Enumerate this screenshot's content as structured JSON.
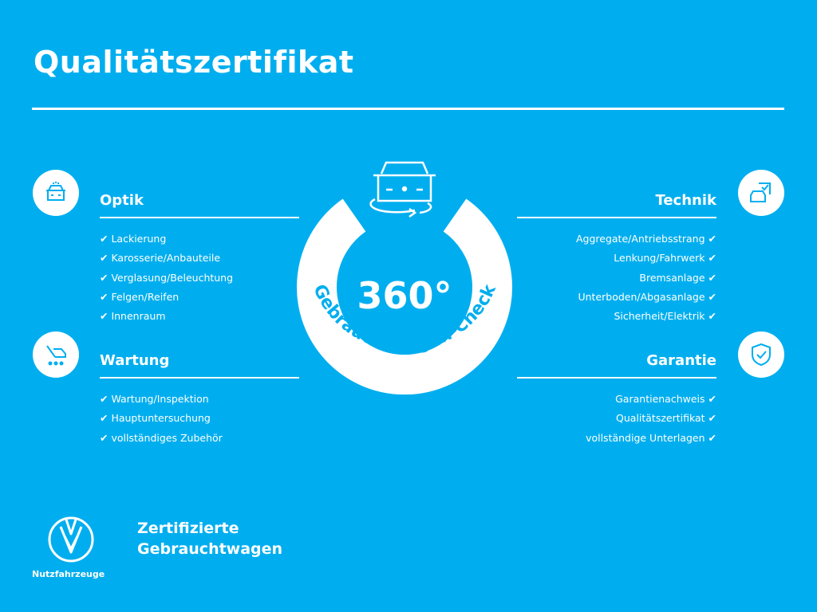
{
  "title": "Qualitätszertifikat",
  "center": {
    "value": "360°",
    "label": "Gebrauchtwagen-Check"
  },
  "sections": {
    "optik": {
      "title": "Optik",
      "icon": "car-front-icon",
      "items": [
        "Lackierung",
        "Karosserie/Anbauteile",
        "Verglasung/Beleuchtung",
        "Felgen/Reifen",
        "Innenraum"
      ]
    },
    "wartung": {
      "title": "Wartung",
      "icon": "wrench-car-icon",
      "items": [
        "Wartung/Inspektion",
        "Hauptuntersuchung",
        "vollständiges Zubehör"
      ]
    },
    "technik": {
      "title": "Technik",
      "icon": "car-checklist-icon",
      "items": [
        "Aggregate/Antriebsstrang",
        "Lenkung/Fahrwerk",
        "Bremsanlage",
        "Unterboden/Abgasanlage",
        "Sicherheit/Elektrik"
      ]
    },
    "garantie": {
      "title": "Garantie",
      "icon": "shield-check-icon",
      "items": [
        "Garantienachweis",
        "Qualitätszertifikat",
        "vollständige Unterlagen"
      ]
    }
  },
  "brand": {
    "line1": "Zertifizierte",
    "line2": "Gebrauchtwagen",
    "sub": "Nutzfahrzeuge",
    "logo": "VW"
  },
  "colors": {
    "background": "#00aeef",
    "foreground": "#ffffff"
  }
}
